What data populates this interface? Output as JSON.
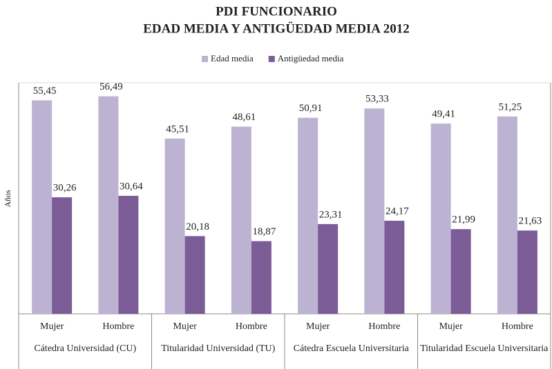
{
  "chart_data": {
    "type": "bar",
    "title": "PDI FUNCIONARIO",
    "subtitle": "EDAD MEDIA Y ANTIGÜEDAD MEDIA 2012",
    "y_label": "Años",
    "categories": [
      "Mujer",
      "Hombre",
      "Mujer",
      "Hombre",
      "Mujer",
      "Hombre",
      "Mujer",
      "Hombre"
    ],
    "groups": [
      "Cátedra Universidad (CU)",
      "Titularidad Universidad (TU)",
      "Cátedra Escuela Universitaria",
      "Titularidad Escuela Universitaria"
    ],
    "series": [
      {
        "name": "Edad media",
        "color": "#bcb3d3",
        "values": [
          55.45,
          56.49,
          45.51,
          48.61,
          50.91,
          53.33,
          49.41,
          51.25
        ],
        "value_labels": [
          "55,45",
          "56,49",
          "45,51",
          "48,61",
          "50,91",
          "53,33",
          "49,41",
          "51,25"
        ]
      },
      {
        "name": "Antigüedad media",
        "color": "#7b5c97",
        "values": [
          30.26,
          30.64,
          20.18,
          18.87,
          23.31,
          24.17,
          21.99,
          21.63
        ],
        "value_labels": [
          "30,26",
          "30,64",
          "20,18",
          "18,87",
          "23,31",
          "24,17",
          "21,99",
          "21,63"
        ]
      }
    ],
    "ylim": [
      0,
      60
    ],
    "legend": "top"
  }
}
